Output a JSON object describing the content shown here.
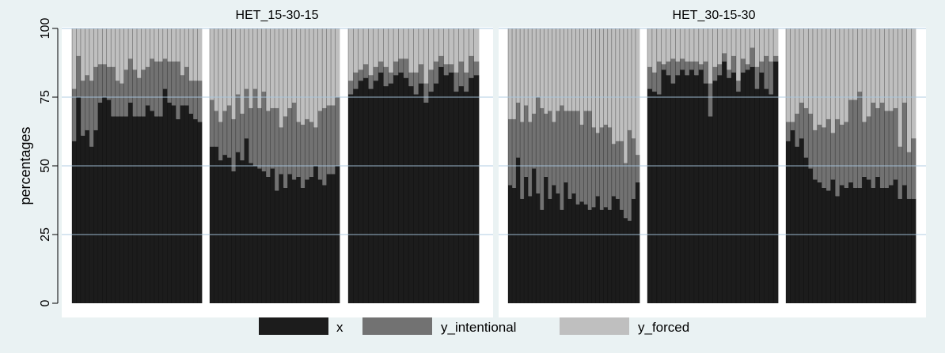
{
  "chart_data": {
    "type": "bar",
    "stacked": true,
    "ylabel": "percentages",
    "ylim": [
      0,
      100
    ],
    "yticks": [
      0,
      25,
      50,
      75,
      100
    ],
    "grid": true,
    "legend": {
      "position": "bottom",
      "entries": [
        "x",
        "y_intentional",
        "y_forced"
      ]
    },
    "colors": {
      "x": "#1c1c1c",
      "y_intentional": "#727272",
      "y_forced": "#bfbfbf",
      "background": "#eaf2f3",
      "plot_background": "#ffffff",
      "grid": "#a8c8e0"
    },
    "panels": [
      {
        "title": "HET_15-30-15",
        "groups": [
          {
            "x": [
              59,
              75,
              61,
              63,
              57,
              63,
              73,
              75,
              74,
              68,
              68,
              68,
              68,
              73,
              68,
              68,
              68,
              72,
              70,
              68,
              68,
              78,
              73,
              72,
              67,
              72,
              72,
              69,
              67,
              66
            ],
            "y_intentional": [
              19,
              15,
              20,
              20,
              24,
              23,
              14,
              12,
              12,
              18,
              13,
              12,
              17,
              16,
              17,
              14,
              17,
              14,
              19,
              20,
              20,
              11,
              15,
              16,
              21,
              11,
              14,
              12,
              14,
              15
            ]
          },
          {
            "x": [
              57,
              57,
              52,
              54,
              53,
              48,
              55,
              52,
              60,
              51,
              50,
              49,
              48,
              46,
              49,
              41,
              47,
              42,
              47,
              45,
              46,
              42,
              45,
              46,
              50,
              45,
              43,
              47,
              47,
              50
            ],
            "y_intentional": [
              17,
              13,
              14,
              16,
              19,
              19,
              21,
              17,
              18,
              20,
              28,
              22,
              29,
              24,
              22,
              30,
              17,
              26,
              24,
              28,
              20,
              23,
              22,
              20,
              14,
              25,
              28,
              25,
              25,
              25
            ]
          },
          {
            "x": [
              76,
              78,
              81,
              82,
              78,
              81,
              84,
              79,
              80,
              83,
              84,
              82,
              79,
              76,
              80,
              73,
              77,
              80,
              86,
              83,
              84,
              77,
              79,
              77,
              82,
              83
            ],
            "y_intentional": [
              5,
              6,
              4,
              5,
              5,
              5,
              4,
              7,
              4,
              5,
              5,
              7,
              5,
              8,
              7,
              7,
              8,
              8,
              4,
              4,
              3,
              7,
              9,
              7,
              8,
              5
            ]
          }
        ]
      },
      {
        "title": "HET_30-15-30",
        "groups": [
          {
            "x": [
              43,
              42,
              53,
              38,
              46,
              39,
              49,
              40,
              34,
              46,
              38,
              43,
              40,
              34,
              44,
              38,
              40,
              36,
              37,
              36,
              34,
              35,
              39,
              34,
              35,
              34,
              39,
              38,
              34,
              31,
              30,
              38,
              44
            ],
            "y_intentional": [
              24,
              25,
              20,
              28,
              26,
              27,
              20,
              35,
              37,
              23,
              32,
              23,
              30,
              38,
              26,
              32,
              30,
              34,
              28,
              34,
              36,
              29,
              23,
              30,
              30,
              30,
              19,
              21,
              25,
              20,
              33,
              22,
              10
            ]
          },
          {
            "x": [
              78,
              77,
              76,
              85,
              83,
              80,
              83,
              85,
              83,
              85,
              83,
              85,
              80,
              68,
              81,
              83,
              88,
              82,
              84,
              77,
              84,
              85,
              86,
              78,
              84,
              78,
              76,
              88
            ],
            "y_intentional": [
              8,
              7,
              12,
              2,
              5,
              9,
              5,
              4,
              5,
              3,
              5,
              2,
              8,
              12,
              5,
              4,
              3,
              3,
              6,
              4,
              5,
              2,
              7,
              8,
              4,
              12,
              12,
              2
            ]
          },
          {
            "x": [
              59,
              63,
              57,
              60,
              53,
              49,
              45,
              44,
              42,
              41,
              45,
              39,
              43,
              42,
              44,
              42,
              42,
              46,
              45,
              42,
              46,
              42,
              42,
              43,
              45,
              38,
              43,
              38,
              38
            ],
            "y_intentional": [
              7,
              3,
              12,
              13,
              18,
              20,
              18,
              21,
              22,
              26,
              17,
              28,
              22,
              24,
              30,
              32,
              35,
              20,
              23,
              31,
              25,
              31,
              28,
              27,
              26,
              19,
              30,
              17,
              22
            ]
          }
        ]
      }
    ]
  }
}
